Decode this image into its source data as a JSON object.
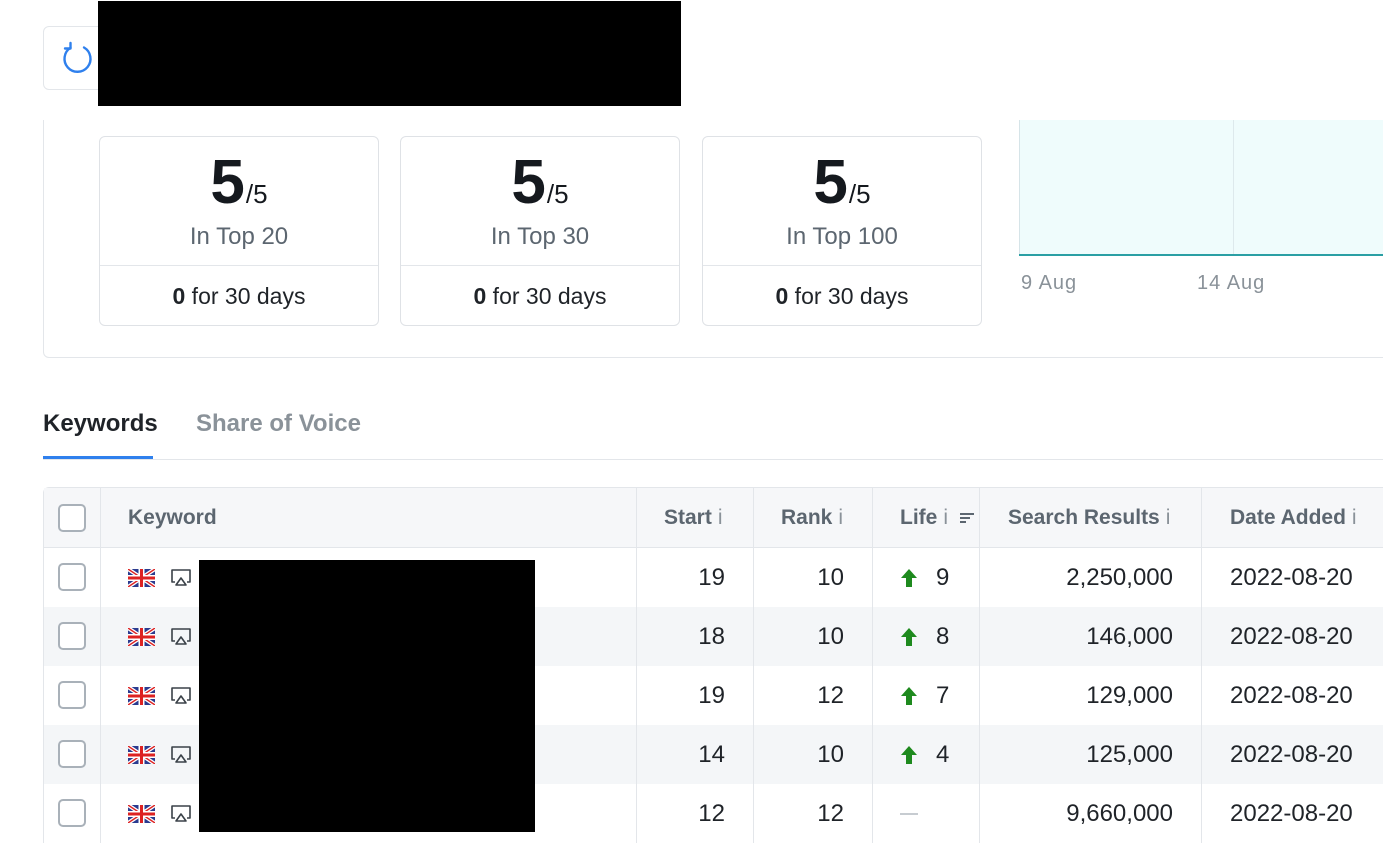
{
  "stats": [
    {
      "value": "5",
      "total": "/5",
      "label": "In Top 20",
      "change": "0",
      "period": " for 30 days"
    },
    {
      "value": "5",
      "total": "/5",
      "label": "In Top 30",
      "change": "0",
      "period": " for 30 days"
    },
    {
      "value": "5",
      "total": "/5",
      "label": "In Top 100",
      "change": "0",
      "period": " for 30 days"
    }
  ],
  "chart": {
    "x_ticks": [
      "9 Aug",
      "14 Aug"
    ]
  },
  "tabs": [
    "Keywords",
    "Share of Voice"
  ],
  "table": {
    "columns": [
      "Keyword",
      "Start",
      "Rank",
      "Life",
      "Search Results",
      "Date Added"
    ],
    "info_symbol": "i",
    "rows": [
      {
        "start": "19",
        "rank": "10",
        "life": "9",
        "life_trend": "up",
        "search_results": "2,250,000",
        "date_added": "2022-08-20"
      },
      {
        "start": "18",
        "rank": "10",
        "life": "8",
        "life_trend": "up",
        "search_results": "146,000",
        "date_added": "2022-08-20"
      },
      {
        "start": "19",
        "rank": "12",
        "life": "7",
        "life_trend": "up",
        "search_results": "129,000",
        "date_added": "2022-08-20"
      },
      {
        "start": "14",
        "rank": "10",
        "life": "4",
        "life_trend": "up",
        "search_results": "125,000",
        "date_added": "2022-08-20"
      },
      {
        "start": "12",
        "rank": "12",
        "life": "",
        "life_trend": "none",
        "search_results": "9,660,000",
        "date_added": "2022-08-20"
      }
    ]
  },
  "icons": {
    "refresh": "refresh-icon",
    "flag": "uk-flag-icon",
    "device": "desktop-device-icon",
    "trend_up": "arrow-up-icon",
    "sort": "sort-icon"
  },
  "colors": {
    "accent": "#2f80ed",
    "trend_up": "#1e8a1e",
    "chart_fill": "#effcfc",
    "chart_line": "#2a9fa4"
  }
}
